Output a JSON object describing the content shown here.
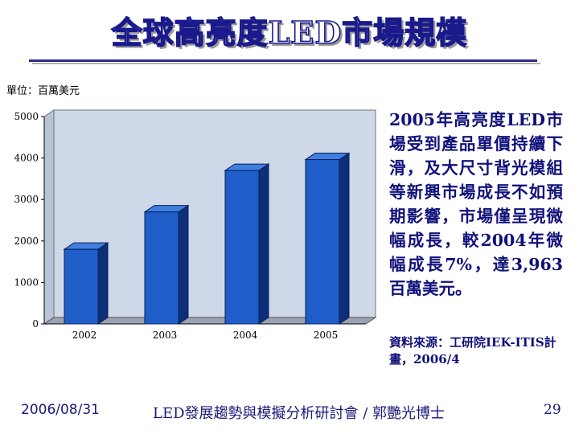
{
  "slide": {
    "title": "全球高亮度LED市場規模",
    "description": "2005年高亮度LED市場受到產品單價持續下滑，及大尺寸背光模組等新興市場成長不如預期影響，市場僅呈現微幅成長，較2004年微幅成長7%，達3,963百萬美元。",
    "source": "資料來源：工研院IEK-ITIS計畫，2006/4"
  },
  "footer": {
    "date": "2006/08/31",
    "center": "LED發展趨勢與模擬分析研討會 / 郭艷光博士",
    "page": "29"
  },
  "colors": {
    "title_fill": "#ffffff",
    "title_outline": "#1a1a8c",
    "text": "#10107a",
    "bar_front": "#1f5ec8",
    "bar_side": "#0d2f7a",
    "bar_top": "#3f7fe0",
    "wall": "#cfd8e8"
  },
  "chart_data": {
    "type": "bar",
    "title": "",
    "unit_label": "單位：百萬美元",
    "categories": [
      "2002",
      "2003",
      "2004",
      "2005"
    ],
    "values": [
      1800,
      2700,
      3700,
      3963
    ],
    "ylim": [
      0,
      5000
    ],
    "yticks": [
      "0",
      "1000",
      "2000",
      "3000",
      "4000",
      "5000"
    ],
    "xlabel": "",
    "ylabel": "",
    "grid": false,
    "style": "3d"
  }
}
